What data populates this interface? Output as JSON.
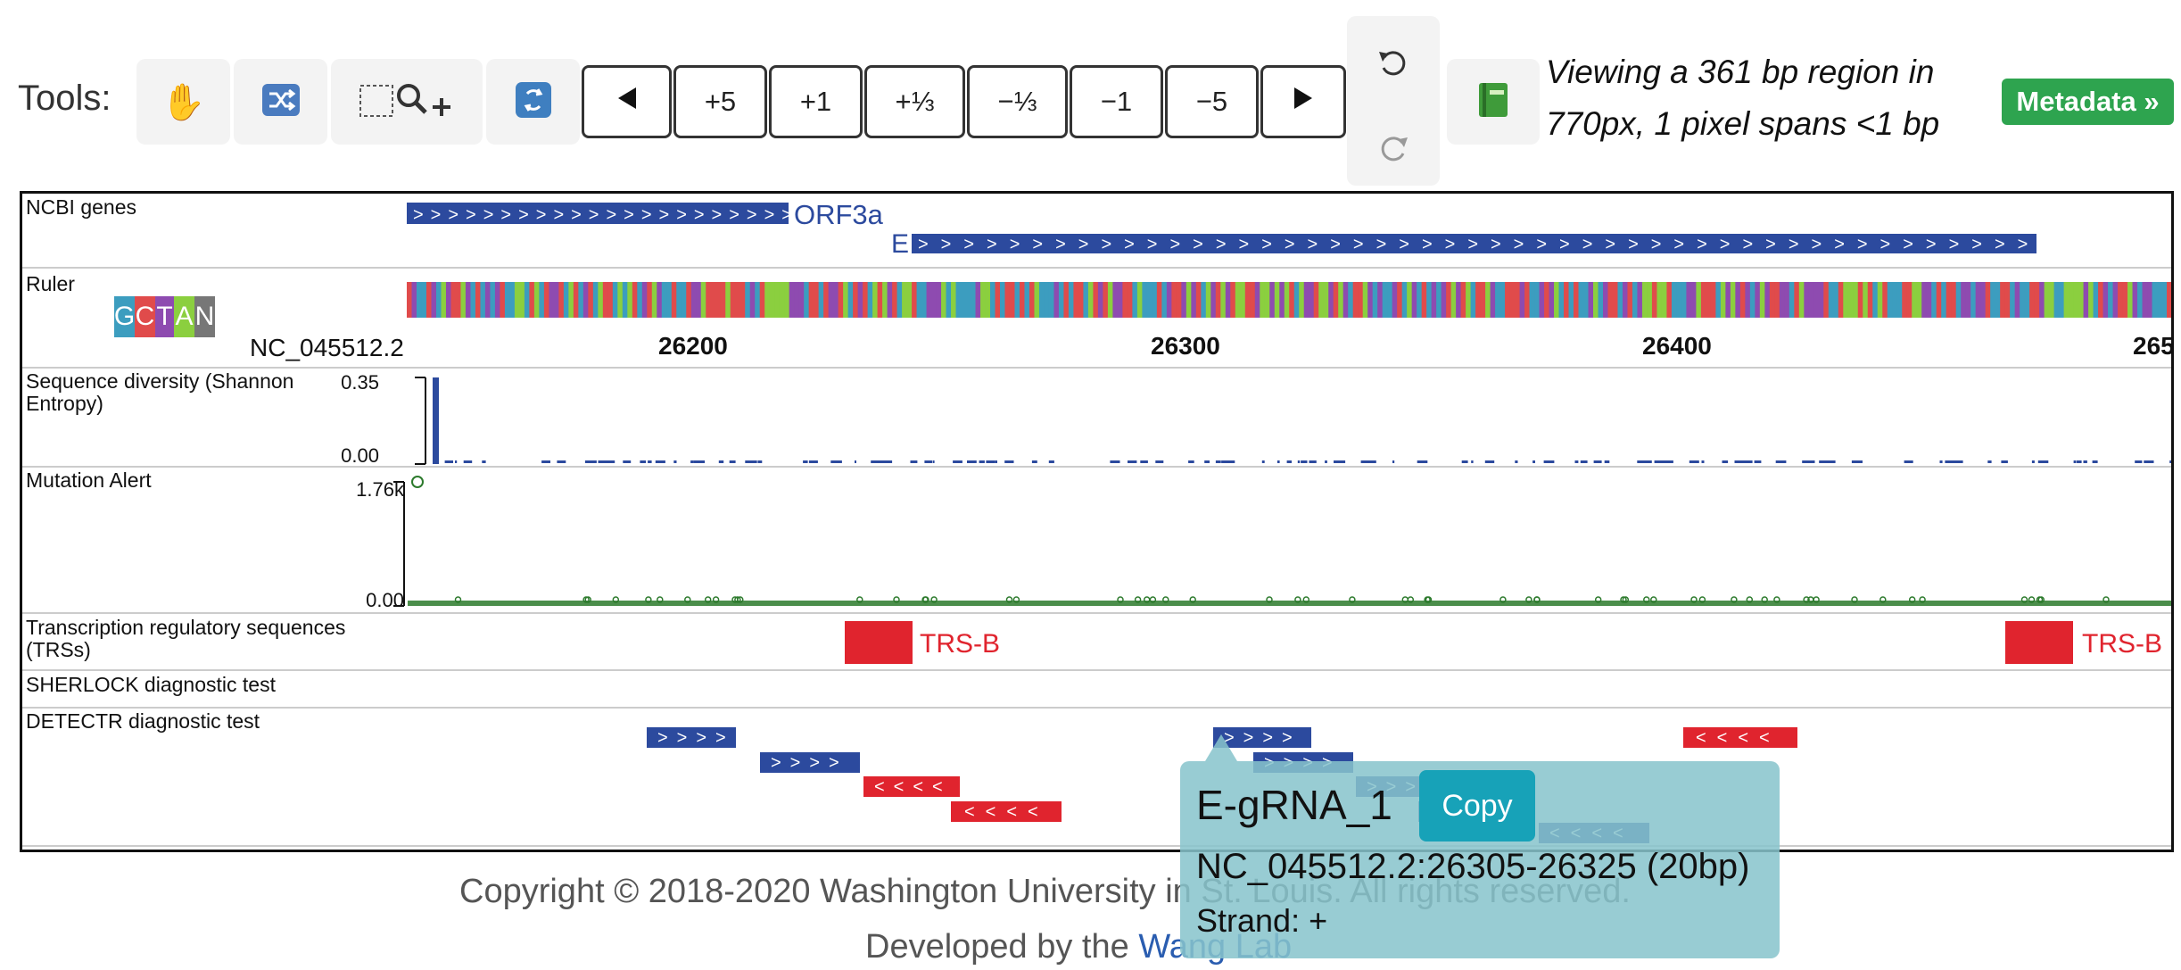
{
  "toolbar": {
    "label": "Tools:",
    "tools": [
      {
        "icon": "hand-icon"
      },
      {
        "icon": "reorder-icon"
      },
      {
        "icon": "zoom-region-icon"
      },
      {
        "icon": "restore-icon"
      }
    ],
    "nav": {
      "zoom_in": [
        "+5",
        "+1",
        "+⅓"
      ],
      "zoom_out": [
        "−⅓",
        "−1",
        "−5"
      ]
    },
    "history": {
      "undo": "undo-icon",
      "redo": "redo-icon"
    },
    "book_icon": "book-icon",
    "viewing_text": "Viewing a 361 bp region in 770px, 1 pixel spans <1 bp",
    "metadata_label": "Metadata »",
    "accent_green": "#2ea44f"
  },
  "tracks": {
    "ncbi_genes": {
      "label": "NCBI genes",
      "genes": [
        {
          "name": "ORF3a"
        },
        {
          "name": "E"
        }
      ],
      "color": "#2c4a9e"
    },
    "ruler": {
      "label": "Ruler",
      "bases": [
        "G",
        "C",
        "T",
        "A",
        "N"
      ],
      "base_colors": [
        "#3c9dbf",
        "#e04b4b",
        "#8e4bb0",
        "#8bcf3f",
        "#777777"
      ],
      "chrom": "NC_045512.2",
      "ticks": [
        "26200",
        "26300",
        "26400",
        "265"
      ]
    },
    "diversity": {
      "label": "Sequence diversity (Shannon Entropy)",
      "ymax": "0.35",
      "ymin": "0.00"
    },
    "mutation": {
      "label": "Mutation Alert",
      "ymax": "1.76k",
      "ymin": "0.00"
    },
    "trs": {
      "label": "Transcription regulatory sequences (TRSs)",
      "features": [
        {
          "name": "TRS-B"
        },
        {
          "name": "TRS-B"
        }
      ],
      "color": "#e0242e"
    },
    "sherlock": {
      "label": "SHERLOCK diagnostic test"
    },
    "detectr": {
      "label": "DETECTR diagnostic test"
    }
  },
  "tooltip": {
    "name": "E-gRNA_1",
    "copy_label": "Copy",
    "location": "NC_045512.2:26305-26325 (20bp)",
    "strand": "Strand: +"
  },
  "footer": {
    "copyright": "Copyright © 2018-2020 Washington University in St. Louis. All rights reserved.",
    "developed_prefix": "Developed by the ",
    "lab_link": "Wang Lab"
  }
}
